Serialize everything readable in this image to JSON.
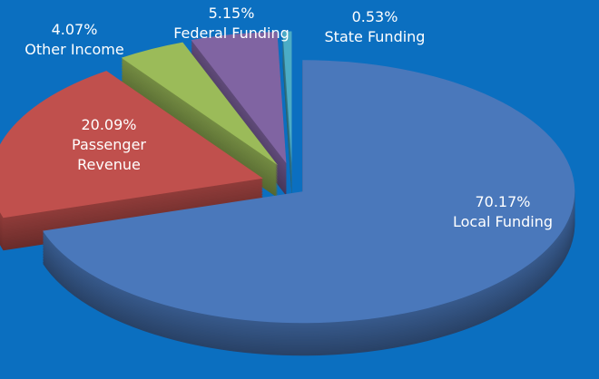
{
  "chart_data": {
    "type": "pie",
    "categories": [
      "Local Funding",
      "Passenger Revenue",
      "Other Income",
      "Federal Funding",
      "State Funding"
    ],
    "values": [
      70.17,
      20.09,
      4.07,
      5.15,
      0.53
    ],
    "value_labels": [
      "70.17%",
      "20.09%",
      "4.07%",
      "5.15%",
      "0.53%"
    ],
    "colors": [
      "#4a78bb",
      "#c0504d",
      "#9bbb59",
      "#8064a2",
      "#4bacc6"
    ],
    "exploded": true,
    "three_d": true
  }
}
